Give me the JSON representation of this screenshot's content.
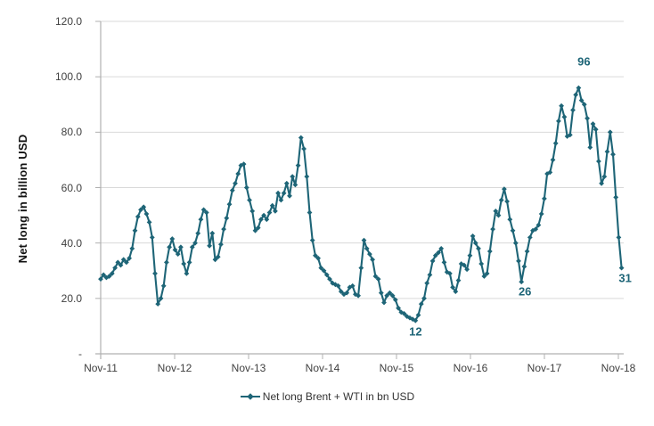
{
  "chart_data": {
    "type": "line",
    "title": "",
    "xlabel": "",
    "ylabel": "Net long in billion USD",
    "ylim": [
      0,
      120
    ],
    "y_tick_step": 20,
    "y_tick_labels_bottom_to_top": [
      "-",
      "20.0",
      "40.0",
      "60.0",
      "80.0",
      "100.0",
      "120.0"
    ],
    "x_tick_labels": [
      "Nov-11",
      "Nov-12",
      "Nov-13",
      "Nov-14",
      "Nov-15",
      "Nov-16",
      "Nov-17",
      "Nov-18"
    ],
    "x_frequency": "weekly (approximated bi-weekly)",
    "grid": "horizontal",
    "legend_position": "bottom-center",
    "legend": [
      "Net long Brent + WTI in bn USD"
    ],
    "series": [
      {
        "name": "Net long Brent + WTI in bn USD",
        "color": "#1e6577",
        "marker": "diamond",
        "values": [
          27,
          28.5,
          27.5,
          28,
          29,
          31,
          33,
          32,
          34,
          33,
          34.5,
          38,
          44.5,
          49.5,
          52,
          53,
          50.5,
          47.5,
          42,
          29,
          18,
          20,
          24.5,
          33,
          38.5,
          41.5,
          37.5,
          36,
          38.5,
          32.5,
          29,
          33,
          38.5,
          40,
          43.5,
          48.5,
          52,
          51,
          39,
          43.5,
          34,
          35,
          39.5,
          45,
          49,
          54,
          59,
          61.5,
          65,
          68,
          68.5,
          60,
          55.5,
          51.5,
          44.5,
          45.5,
          48.5,
          50,
          48.5,
          51,
          53.5,
          51.5,
          58,
          55.5,
          58,
          61.5,
          57,
          64,
          61,
          68,
          78,
          74,
          64,
          51,
          41,
          35.5,
          34.5,
          31,
          30,
          28.5,
          27,
          25.5,
          25,
          24.5,
          22.5,
          21.5,
          22,
          24,
          24.5,
          21.5,
          21,
          31,
          41,
          38,
          36,
          34,
          28,
          27,
          22,
          18.5,
          21,
          22,
          21,
          19.5,
          16.5,
          15,
          14.5,
          13.5,
          13,
          12.5,
          12,
          14,
          18,
          20,
          25.5,
          28.5,
          33.5,
          35.5,
          36.5,
          38,
          33,
          29.5,
          29,
          24,
          22.5,
          26.5,
          32.5,
          32,
          30.5,
          35.5,
          42.5,
          40,
          38,
          32.5,
          28,
          29,
          37,
          45,
          51.5,
          50,
          55.5,
          59.5,
          55,
          48.5,
          44.5,
          40,
          33.5,
          26,
          31.5,
          37,
          42,
          44.5,
          45,
          46.5,
          50.5,
          56,
          65,
          65.5,
          70,
          76,
          84,
          89.5,
          85.5,
          78.5,
          79,
          88,
          93.5,
          96,
          91.5,
          90,
          85,
          74.5,
          83,
          81,
          69.5,
          61.5,
          64,
          73,
          80,
          72,
          56.5,
          42,
          31
        ]
      }
    ],
    "annotations": [
      {
        "label": "96",
        "point_index": 167,
        "placement": "above"
      },
      {
        "label": "12",
        "point_index": 110,
        "placement": "below"
      },
      {
        "label": "26",
        "point_index": 147,
        "placement": "below-right"
      },
      {
        "label": "31",
        "point_index": 182,
        "placement": "below-right"
      }
    ],
    "colors": {
      "line": "#1e6577",
      "annotation_text": "#1e6577",
      "axis_line": "#b0b0b0",
      "gridline": "#d9d9d9",
      "tick_label_text": "#3f3f3f",
      "axis_title_text": "#111111",
      "background": "#ffffff"
    }
  }
}
